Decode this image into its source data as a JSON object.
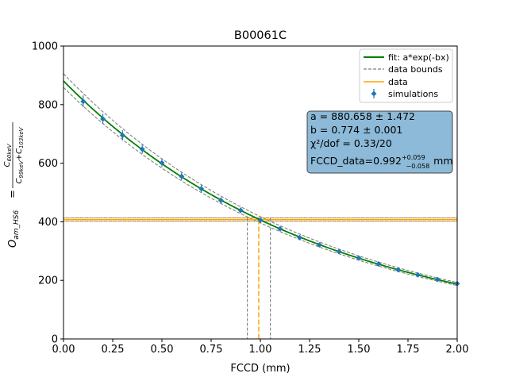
{
  "chart_data": {
    "type": "scatter",
    "title": "B00061C",
    "xlabel": "FCCD (mm)",
    "ylabel": "O_am_HS6 = C60keV / (C99keV + C103keV)",
    "ylabel_parts": {
      "lhs_main": "O",
      "lhs_sub": "am_HS6",
      "equals": "=",
      "num_main": "C",
      "num_sub": "60keV",
      "den1_main": "C",
      "den1_sub": "99keV",
      "plus": "+",
      "den2_main": "C",
      "den2_sub": "103keV"
    },
    "xlim": [
      0.0,
      2.0
    ],
    "ylim": [
      0,
      1000
    ],
    "xticks": [
      "0.00",
      "0.25",
      "0.50",
      "0.75",
      "1.00",
      "1.25",
      "1.50",
      "1.75",
      "2.00"
    ],
    "yticks": [
      "0",
      "200",
      "400",
      "600",
      "800",
      "1000"
    ],
    "grid": false,
    "legend_position": "top-right",
    "fit": {
      "function": "a*exp(-bx)",
      "a": 880.658,
      "b": 0.774,
      "band": [
        25,
        22
      ]
    },
    "series": [
      {
        "name": "simulations",
        "x": [
          0.1,
          0.2,
          0.3,
          0.4,
          0.5,
          0.6,
          0.7,
          0.8,
          0.9,
          1.0,
          1.1,
          1.2,
          1.3,
          1.4,
          1.5,
          1.6,
          1.7,
          1.8,
          1.9,
          2.0
        ],
        "y": [
          811,
          751,
          695,
          648,
          601,
          555,
          513,
          473,
          439,
          405,
          376,
          346,
          321,
          298,
          276,
          256,
          236,
          219,
          203,
          189
        ],
        "yerr": [
          20,
          18,
          17,
          15,
          14,
          13,
          12,
          11,
          10,
          9,
          8,
          7,
          6,
          6,
          5,
          5,
          4,
          4,
          3,
          3
        ],
        "color": "#1f77b4"
      }
    ],
    "data_line": {
      "name": "data",
      "y": 407.5,
      "y_low": 402.0,
      "y_high": 413.0,
      "color": "#ffa500"
    },
    "fccd_marker": {
      "x": 0.992,
      "x_low": 0.934,
      "x_high": 1.051
    },
    "legend": [
      {
        "label": "fit: a*exp(-bx)",
        "style": "solid",
        "color": "#008000"
      },
      {
        "label": "data bounds",
        "style": "dashed",
        "color": "#808080"
      },
      {
        "label": "data",
        "style": "solid",
        "color": "#ffa500"
      },
      {
        "label": "simulations",
        "style": "errorbar-marker",
        "color": "#1f77b4"
      }
    ],
    "annotation": {
      "background": "#8cbad8",
      "lines": [
        {
          "name": "a",
          "text": "a = 880.658 ± 1.472"
        },
        {
          "name": "b",
          "text": "b = 0.774 ± 0.001"
        },
        {
          "name": "chi2",
          "text": "χ²/dof = 0.33/20"
        },
        {
          "name": "fccd",
          "text": "FCCD_data=0.992",
          "sup": "+0.059",
          "sub": "−0.058",
          "unit": "mm"
        }
      ]
    }
  }
}
